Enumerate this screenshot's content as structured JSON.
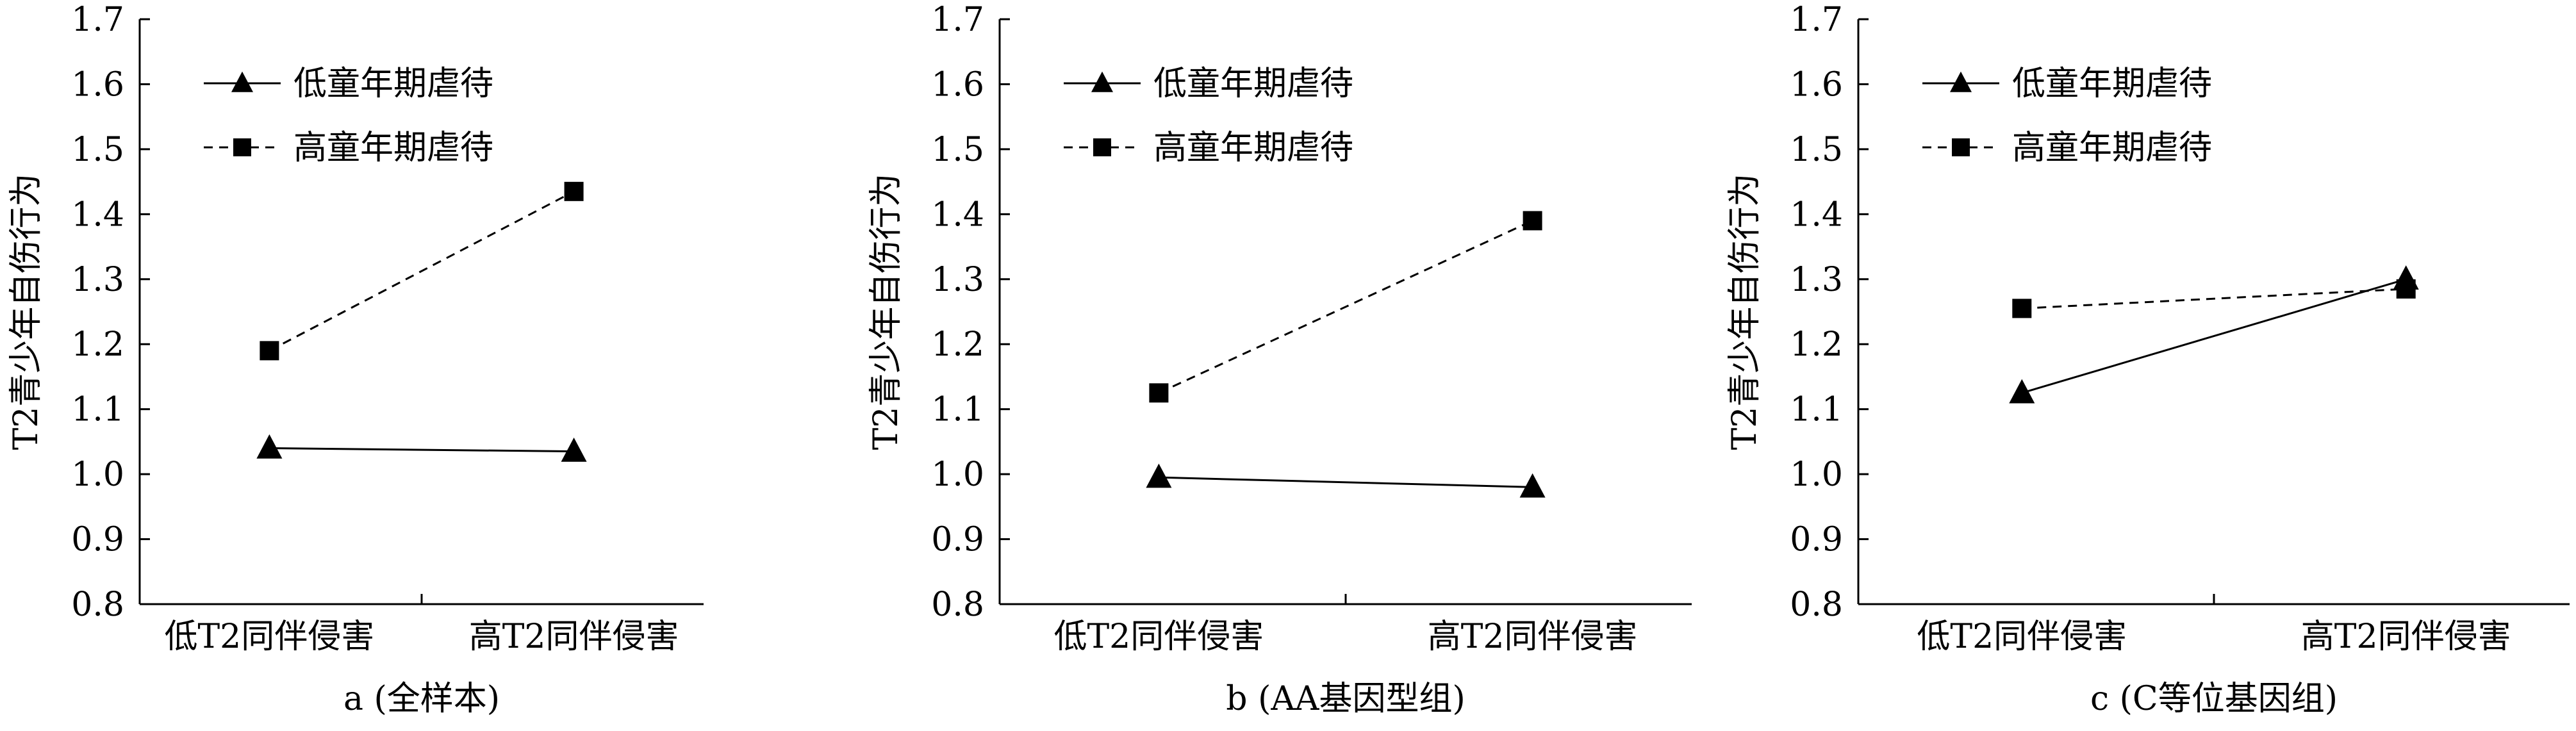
{
  "chart_data": [
    {
      "type": "line",
      "panel": "a",
      "caption": "a (全样本)",
      "categories": [
        "低T2同伴侵害",
        "高T2同伴侵害"
      ],
      "ylabel": "T2青少年自伤行为",
      "ylim": [
        0.8,
        1.7
      ],
      "yticks": [
        "0.8",
        "0.9",
        "1.0",
        "1.1",
        "1.2",
        "1.3",
        "1.4",
        "1.5",
        "1.6",
        "1.7"
      ],
      "legend_position": "top-left",
      "series": [
        {
          "name": "低童年期虐待",
          "values": [
            1.04,
            1.035
          ],
          "marker": "triangle",
          "line": "solid"
        },
        {
          "name": "高童年期虐待",
          "values": [
            1.19,
            1.435
          ],
          "marker": "square",
          "line": "dashed"
        }
      ]
    },
    {
      "type": "line",
      "panel": "b",
      "caption": "b (AA基因型组)",
      "categories": [
        "低T2同伴侵害",
        "高T2同伴侵害"
      ],
      "ylabel": "T2青少年自伤行为",
      "ylim": [
        0.8,
        1.7
      ],
      "yticks": [
        "0.8",
        "0.9",
        "1.0",
        "1.1",
        "1.2",
        "1.3",
        "1.4",
        "1.5",
        "1.6",
        "1.7"
      ],
      "legend_position": "top-left",
      "series": [
        {
          "name": "低童年期虐待",
          "values": [
            0.995,
            0.98
          ],
          "marker": "triangle",
          "line": "solid"
        },
        {
          "name": "高童年期虐待",
          "values": [
            1.125,
            1.39
          ],
          "marker": "square",
          "line": "dashed"
        }
      ]
    },
    {
      "type": "line",
      "panel": "c",
      "caption": "c (C等位基因组)",
      "categories": [
        "低T2同伴侵害",
        "高T2同伴侵害"
      ],
      "ylabel": "T2青少年自伤行为",
      "ylim": [
        0.8,
        1.7
      ],
      "yticks": [
        "0.8",
        "0.9",
        "1.0",
        "1.1",
        "1.2",
        "1.3",
        "1.4",
        "1.5",
        "1.6",
        "1.7"
      ],
      "legend_position": "top-left",
      "series": [
        {
          "name": "低童年期虐待",
          "values": [
            1.125,
            1.3
          ],
          "marker": "triangle",
          "line": "solid"
        },
        {
          "name": "高童年期虐待",
          "values": [
            1.255,
            1.285
          ],
          "marker": "square",
          "line": "dashed"
        }
      ]
    }
  ]
}
